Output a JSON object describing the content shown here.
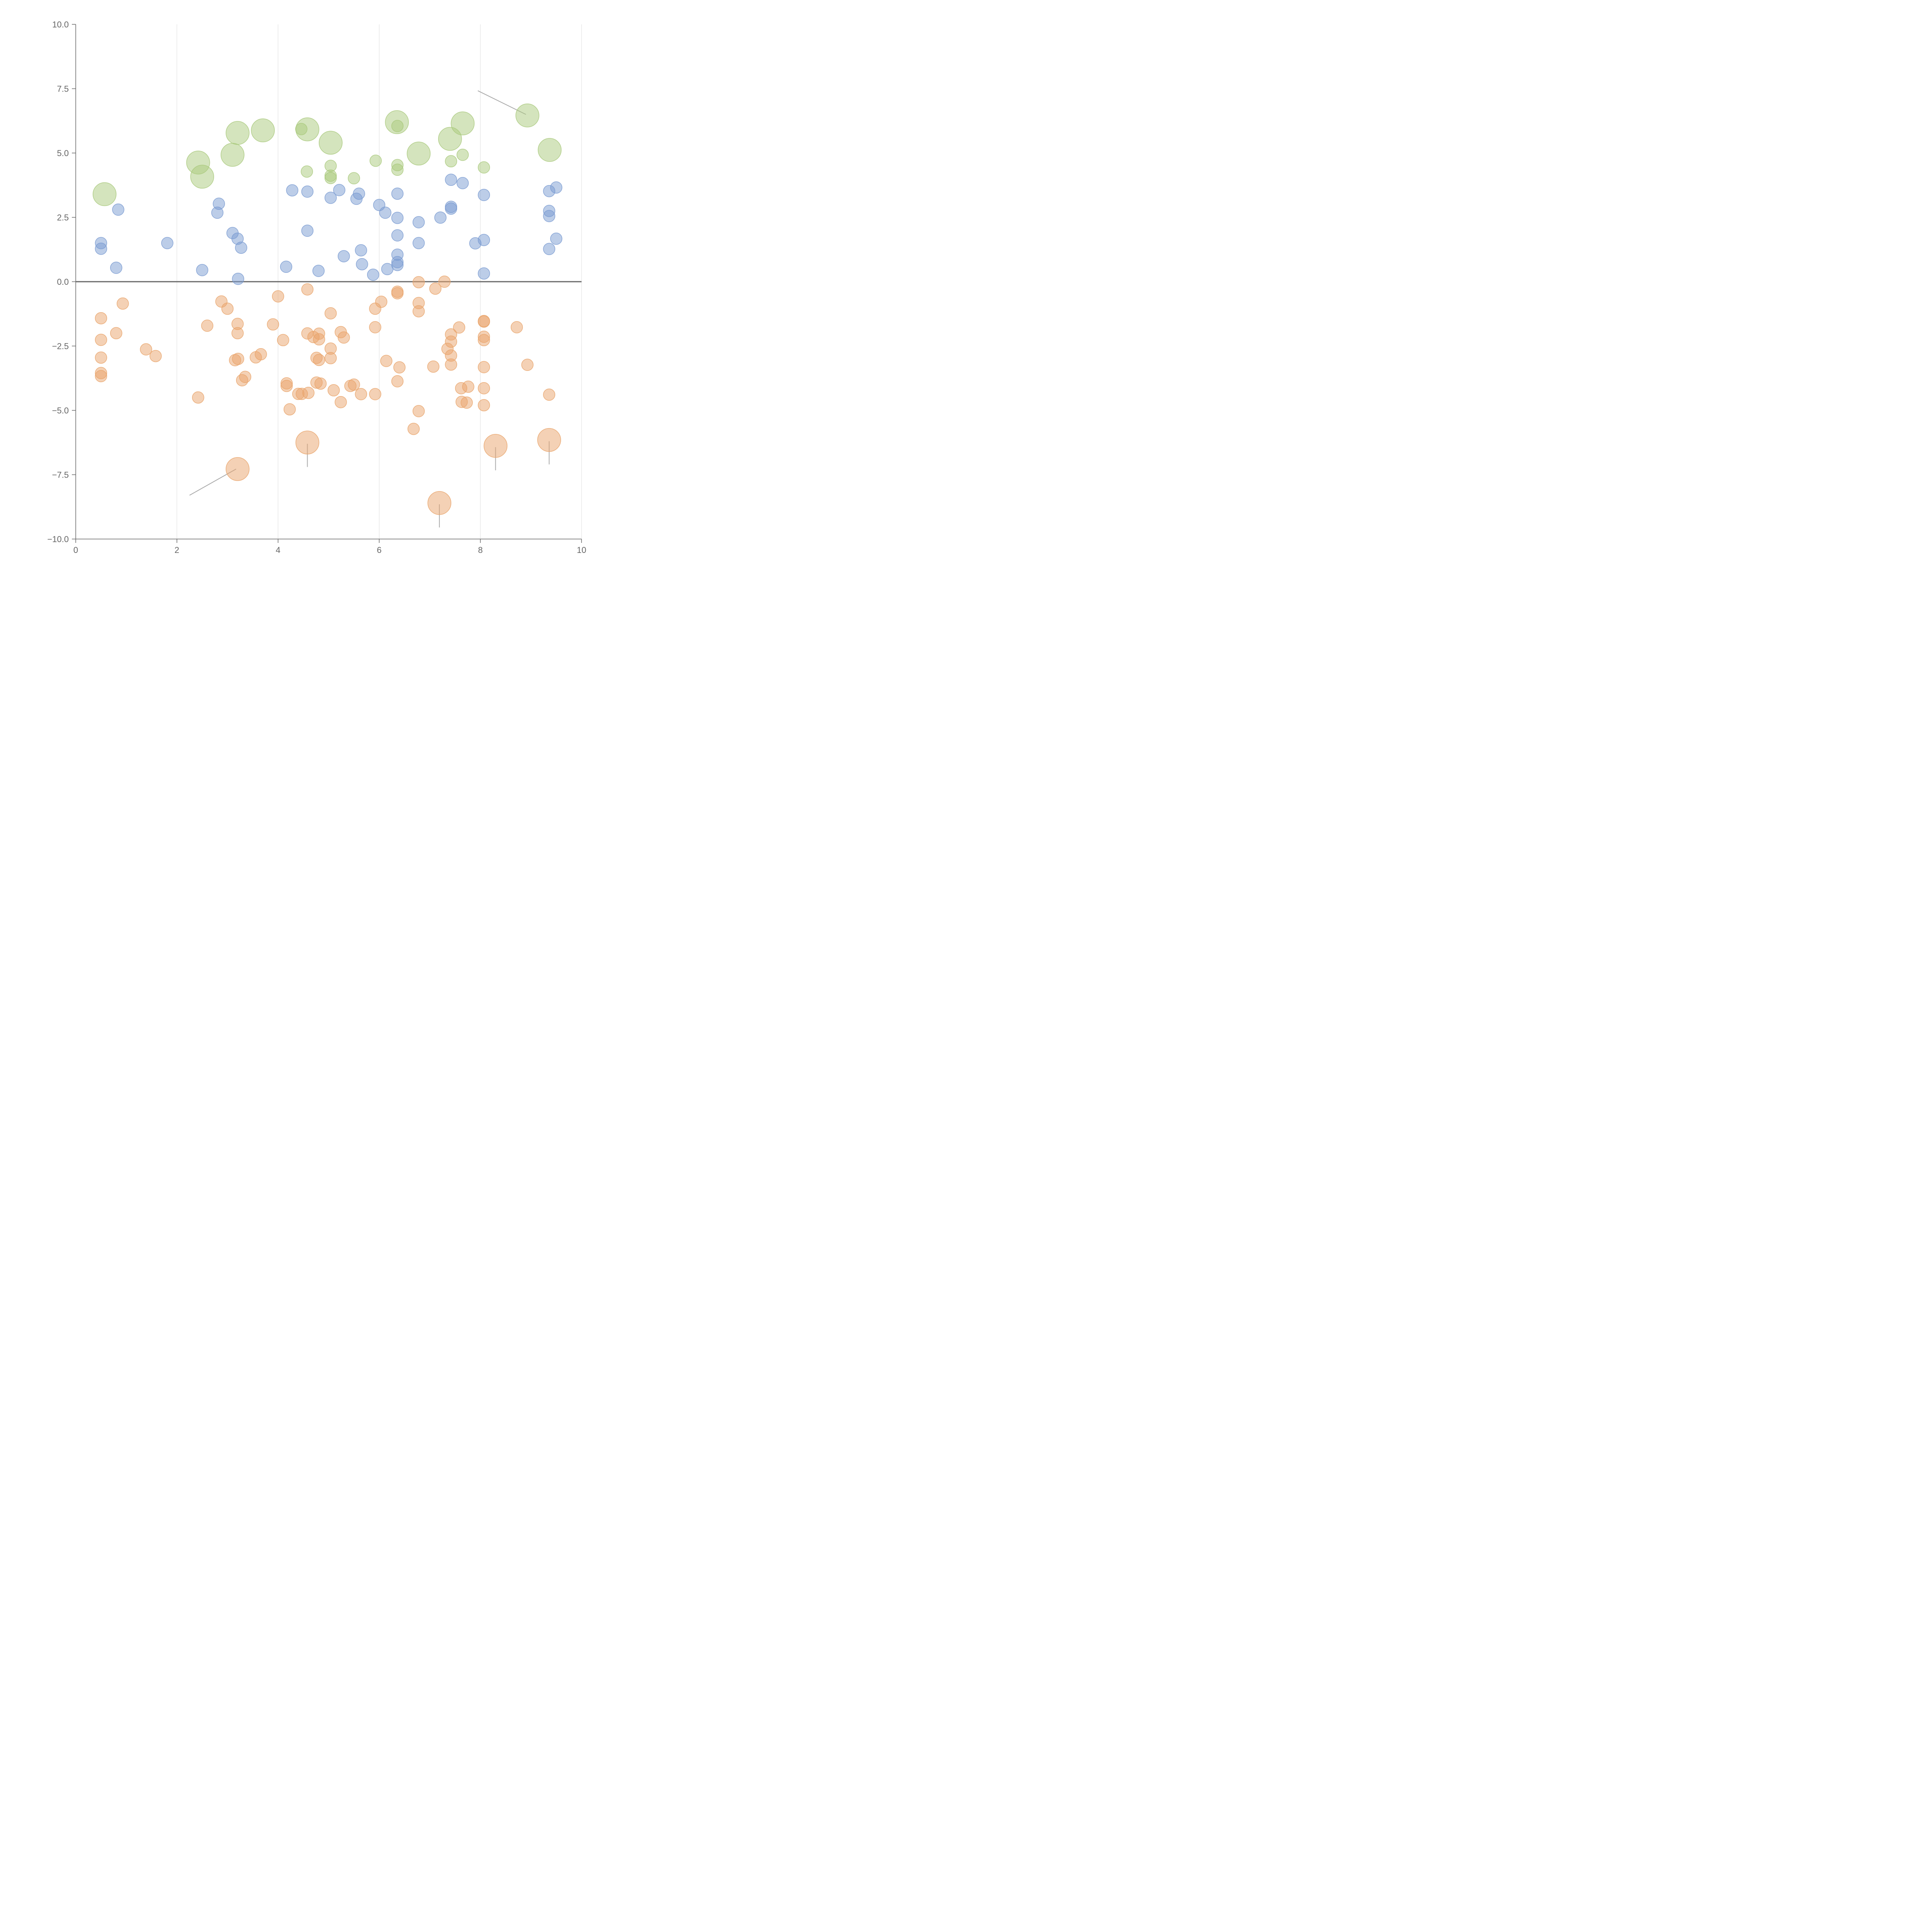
{
  "chart_data": {
    "type": "scatter",
    "title": "",
    "xlabel": "",
    "ylabel": "",
    "xlim": [
      0,
      10
    ],
    "ylim": [
      -10,
      10
    ],
    "x_ticks": [
      0,
      2,
      4,
      6,
      8,
      10
    ],
    "y_ticks": [
      -10,
      -7.5,
      -5,
      -2.5,
      0,
      2.5,
      5,
      7.5,
      10
    ],
    "x_tick_labels": [
      "0",
      "2",
      "4",
      "6",
      "8",
      "10"
    ],
    "y_tick_labels": [
      "−10.0",
      "−7.5",
      "−5.0",
      "−2.5",
      "0.0",
      "2.5",
      "5.0",
      "7.5",
      "10.0"
    ],
    "grid": "vertical",
    "zero_line": true,
    "colors": {
      "green": "#a9c97c",
      "blue": "#7a9bd1",
      "orange": "#e9a46b",
      "axis": "#666666",
      "grid": "#dddddd",
      "leader": "#aaaaaa"
    },
    "series": [
      {
        "color": "green",
        "points": [
          [
            0.57,
            3.4,
            1
          ],
          [
            2.42,
            4.63,
            1
          ],
          [
            2.5,
            4.08,
            1
          ],
          [
            3.1,
            4.93,
            1
          ],
          [
            3.2,
            5.78,
            1
          ],
          [
            3.7,
            5.88,
            1
          ],
          [
            4.46,
            5.93,
            0.4
          ],
          [
            4.58,
            5.92,
            1
          ],
          [
            4.57,
            4.28,
            0.4
          ],
          [
            5.04,
            5.4,
            1
          ],
          [
            5.04,
            4.5,
            0.4
          ],
          [
            5.04,
            4.03,
            0.4
          ],
          [
            5.04,
            4.12,
            0.4
          ],
          [
            5.5,
            4.02,
            0.4
          ],
          [
            5.93,
            4.7,
            0.4
          ],
          [
            6.35,
            6.2,
            1
          ],
          [
            6.36,
            6.05,
            0.4
          ],
          [
            6.36,
            4.53,
            0.4
          ],
          [
            6.36,
            4.35,
            0.4
          ],
          [
            6.78,
            4.98,
            1
          ],
          [
            7.4,
            5.55,
            1
          ],
          [
            7.42,
            4.68,
            0.4
          ],
          [
            7.65,
            6.15,
            1
          ],
          [
            7.65,
            4.93,
            0.4
          ],
          [
            8.07,
            4.44,
            0.4
          ],
          [
            8.93,
            6.46,
            1
          ],
          [
            9.37,
            5.12,
            1
          ]
        ]
      },
      {
        "color": "blue",
        "points": [
          [
            0.5,
            1.5,
            0.4
          ],
          [
            0.5,
            1.28,
            0.4
          ],
          [
            0.8,
            0.54,
            0.4
          ],
          [
            0.84,
            2.8,
            0.4
          ],
          [
            1.81,
            1.5,
            0.4
          ],
          [
            2.5,
            0.45,
            0.4
          ],
          [
            2.8,
            2.68,
            0.4
          ],
          [
            2.83,
            3.03,
            0.4
          ],
          [
            3.1,
            1.89,
            0.4
          ],
          [
            3.2,
            1.67,
            0.4
          ],
          [
            3.27,
            1.32,
            0.4
          ],
          [
            3.21,
            0.11,
            0.4
          ],
          [
            4.16,
            0.58,
            0.4
          ],
          [
            4.28,
            3.55,
            0.4
          ],
          [
            4.58,
            3.5,
            0.4
          ],
          [
            4.58,
            1.98,
            0.4
          ],
          [
            4.8,
            0.42,
            0.4
          ],
          [
            5.04,
            3.26,
            0.4
          ],
          [
            5.21,
            3.56,
            0.4
          ],
          [
            5.3,
            0.99,
            0.4
          ],
          [
            5.55,
            3.22,
            0.4
          ],
          [
            5.6,
            3.42,
            0.4
          ],
          [
            5.64,
            1.22,
            0.4
          ],
          [
            5.66,
            0.68,
            0.4
          ],
          [
            5.88,
            0.27,
            0.4
          ],
          [
            6.0,
            2.98,
            0.4
          ],
          [
            6.12,
            2.68,
            0.4
          ],
          [
            6.16,
            0.49,
            0.4
          ],
          [
            6.36,
            3.42,
            0.4
          ],
          [
            6.36,
            2.48,
            0.4
          ],
          [
            6.36,
            1.8,
            0.4
          ],
          [
            6.36,
            1.05,
            0.4
          ],
          [
            6.36,
            0.76,
            0.4
          ],
          [
            6.36,
            0.65,
            0.4
          ],
          [
            6.78,
            2.31,
            0.4
          ],
          [
            6.78,
            1.5,
            0.4
          ],
          [
            7.21,
            2.49,
            0.4
          ],
          [
            7.42,
            3.96,
            0.4
          ],
          [
            7.42,
            2.91,
            0.4
          ],
          [
            7.42,
            2.84,
            0.4
          ],
          [
            7.65,
            3.83,
            0.4
          ],
          [
            7.9,
            1.49,
            0.4
          ],
          [
            8.07,
            3.37,
            0.4
          ],
          [
            8.07,
            1.62,
            0.4
          ],
          [
            8.07,
            0.32,
            0.4
          ],
          [
            9.36,
            3.52,
            0.4
          ],
          [
            9.36,
            2.75,
            0.4
          ],
          [
            9.36,
            2.55,
            0.4
          ],
          [
            9.36,
            1.27,
            0.4
          ],
          [
            9.5,
            3.66,
            0.4
          ],
          [
            9.5,
            1.67,
            0.4
          ]
        ]
      },
      {
        "color": "orange",
        "points": [
          [
            0.5,
            -1.42,
            0.4
          ],
          [
            0.5,
            -2.26,
            0.4
          ],
          [
            0.5,
            -2.95,
            0.4
          ],
          [
            0.5,
            -3.55,
            0.4
          ],
          [
            0.5,
            -3.67,
            0.4
          ],
          [
            0.8,
            -2.0,
            0.4
          ],
          [
            0.93,
            -0.85,
            0.4
          ],
          [
            1.39,
            -2.63,
            0.4
          ],
          [
            1.58,
            -2.89,
            0.4
          ],
          [
            2.42,
            -4.5,
            0.4
          ],
          [
            2.6,
            -1.71,
            0.4
          ],
          [
            2.88,
            -0.77,
            0.4
          ],
          [
            3.0,
            -1.05,
            0.4
          ],
          [
            3.15,
            -3.05,
            0.4
          ],
          [
            3.2,
            -1.64,
            0.4
          ],
          [
            3.2,
            -2.0,
            0.4
          ],
          [
            3.21,
            -3.0,
            0.4
          ],
          [
            3.29,
            -3.83,
            0.4
          ],
          [
            3.35,
            -3.7,
            0.4
          ],
          [
            3.2,
            -7.28,
            1
          ],
          [
            3.56,
            -2.94,
            0.4
          ],
          [
            3.66,
            -2.82,
            0.4
          ],
          [
            3.9,
            -1.66,
            0.4
          ],
          [
            4.0,
            -0.57,
            0.4
          ],
          [
            4.1,
            -2.27,
            0.4
          ],
          [
            4.17,
            -4.05,
            0.4
          ],
          [
            4.17,
            -3.95,
            0.4
          ],
          [
            4.23,
            -4.96,
            0.4
          ],
          [
            4.4,
            -4.36,
            0.4
          ],
          [
            4.47,
            -4.36,
            0.4
          ],
          [
            4.58,
            -2.01,
            0.4
          ],
          [
            4.58,
            -0.3,
            0.4
          ],
          [
            4.6,
            -4.32,
            0.4
          ],
          [
            4.58,
            -6.25,
            1
          ],
          [
            4.7,
            -2.15,
            0.4
          ],
          [
            4.76,
            -2.96,
            0.4
          ],
          [
            4.76,
            -3.92,
            0.4
          ],
          [
            4.81,
            -2.02,
            0.4
          ],
          [
            4.81,
            -2.24,
            0.4
          ],
          [
            4.81,
            -3.04,
            0.4
          ],
          [
            4.84,
            -3.96,
            0.4
          ],
          [
            5.04,
            -1.23,
            0.4
          ],
          [
            5.04,
            -2.6,
            0.4
          ],
          [
            5.04,
            -2.97,
            0.4
          ],
          [
            5.1,
            -4.22,
            0.4
          ],
          [
            5.24,
            -1.96,
            0.4
          ],
          [
            5.24,
            -4.68,
            0.4
          ],
          [
            5.3,
            -2.17,
            0.4
          ],
          [
            5.43,
            -4.05,
            0.4
          ],
          [
            5.5,
            -4.0,
            0.4
          ],
          [
            5.64,
            -4.37,
            0.4
          ],
          [
            5.92,
            -1.05,
            0.4
          ],
          [
            5.92,
            -1.77,
            0.4
          ],
          [
            5.92,
            -4.37,
            0.4
          ],
          [
            6.04,
            -0.78,
            0.4
          ],
          [
            6.14,
            -3.08,
            0.4
          ],
          [
            6.36,
            -0.39,
            0.4
          ],
          [
            6.36,
            -0.45,
            0.4
          ],
          [
            6.36,
            -3.87,
            0.4
          ],
          [
            6.4,
            -3.33,
            0.4
          ],
          [
            6.68,
            -5.72,
            0.4
          ],
          [
            6.78,
            -0.02,
            0.4
          ],
          [
            6.78,
            -0.83,
            0.4
          ],
          [
            6.78,
            -1.15,
            0.4
          ],
          [
            6.78,
            -5.03,
            0.4
          ],
          [
            7.07,
            -3.3,
            0.4
          ],
          [
            7.11,
            -0.27,
            0.4
          ],
          [
            7.29,
            0.0,
            0.4
          ],
          [
            7.19,
            -8.6,
            1
          ],
          [
            7.35,
            -2.61,
            0.4
          ],
          [
            7.42,
            -2.05,
            0.4
          ],
          [
            7.42,
            -2.33,
            0.4
          ],
          [
            7.42,
            -2.87,
            0.4
          ],
          [
            7.42,
            -3.22,
            0.4
          ],
          [
            7.58,
            -1.78,
            0.4
          ],
          [
            7.62,
            -4.14,
            0.4
          ],
          [
            7.63,
            -4.67,
            0.4
          ],
          [
            7.73,
            -4.7,
            0.4
          ],
          [
            7.76,
            -4.08,
            0.4
          ],
          [
            8.07,
            -1.55,
            0.4
          ],
          [
            8.07,
            -1.53,
            0.4
          ],
          [
            8.07,
            -2.14,
            0.4
          ],
          [
            8.07,
            -2.27,
            0.4
          ],
          [
            8.07,
            -3.32,
            0.4
          ],
          [
            8.07,
            -4.14,
            0.4
          ],
          [
            8.07,
            -4.8,
            0.4
          ],
          [
            8.3,
            -6.38,
            1
          ],
          [
            8.72,
            -1.77,
            0.4
          ],
          [
            8.93,
            -3.23,
            0.4
          ],
          [
            9.36,
            -4.39,
            0.4
          ],
          [
            9.36,
            -6.15,
            1
          ]
        ]
      }
    ],
    "leader_lines": [
      [
        [
          7.95,
          7.42
        ],
        [
          8.9,
          6.5
        ]
      ],
      [
        [
          2.25,
          -8.3
        ],
        [
          3.17,
          -7.28
        ]
      ],
      [
        [
          4.58,
          -6.3
        ],
        [
          4.58,
          -7.2
        ]
      ],
      [
        [
          7.19,
          -8.65
        ],
        [
          7.19,
          -9.55
        ]
      ],
      [
        [
          8.3,
          -6.43
        ],
        [
          8.3,
          -7.33
        ]
      ],
      [
        [
          9.36,
          -6.2
        ],
        [
          9.36,
          -7.1
        ]
      ]
    ]
  }
}
